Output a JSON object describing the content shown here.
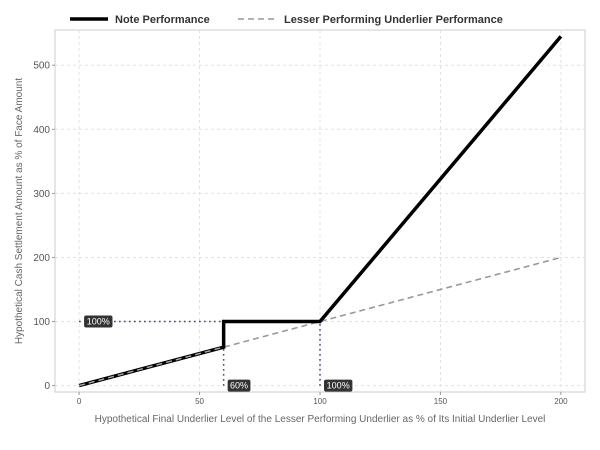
{
  "chart_data": {
    "type": "line",
    "title": "",
    "xlabel": "Hypothetical Final Underlier Level of the Lesser Performing Underlier as % of Its Initial Underlier Level",
    "ylabel": "Hypothetical Cash Settlement Amount as % of Face Amount",
    "xlim": [
      -10,
      210
    ],
    "ylim": [
      -10,
      555
    ],
    "xticks": [
      0,
      50,
      100,
      150,
      200
    ],
    "yticks": [
      0,
      100,
      200,
      300,
      400,
      500
    ],
    "grid": true,
    "legend_position": "top-left",
    "series": [
      {
        "name": "Note Performance",
        "style": "solid",
        "color": "#000000",
        "points": [
          [
            0,
            0
          ],
          [
            60,
            60
          ],
          [
            60,
            100
          ],
          [
            100,
            100
          ],
          [
            200,
            545
          ]
        ]
      },
      {
        "name": "Lesser Performing Underlier Performance",
        "style": "dashed",
        "color": "#999999",
        "points": [
          [
            0,
            0
          ],
          [
            200,
            200
          ]
        ]
      }
    ],
    "reference_lines": [
      {
        "from": [
          0,
          100
        ],
        "to": [
          100,
          100
        ]
      },
      {
        "from": [
          60,
          0
        ],
        "to": [
          60,
          100
        ]
      },
      {
        "from": [
          100,
          0
        ],
        "to": [
          100,
          100
        ]
      }
    ],
    "annotations": [
      {
        "text": "100%",
        "x": 0,
        "y": 100
      },
      {
        "text": "60%",
        "x": 60,
        "y": 0
      },
      {
        "text": "100%",
        "x": 100,
        "y": 0
      }
    ]
  }
}
